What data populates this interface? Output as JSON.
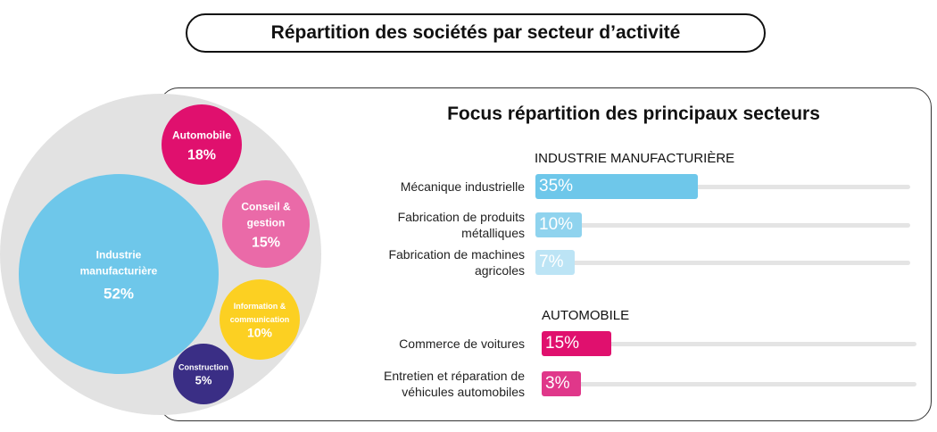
{
  "title": "Répartition des sociétés par secteur d’activité",
  "chart_data": [
    {
      "type": "bubble",
      "bubbles": [
        {
          "name": "Industrie manufacturière",
          "lines": [
            "Industrie",
            "manufacturière"
          ],
          "value": 52,
          "label": "52%",
          "color": "#6ec7ea"
        },
        {
          "name": "Automobile",
          "lines": [
            "Automobile"
          ],
          "value": 18,
          "label": "18%",
          "color": "#e0106e"
        },
        {
          "name": "Conseil & gestion",
          "lines": [
            "Conseil &",
            "gestion"
          ],
          "value": 15,
          "label": "15%",
          "color": "#ea6aa8"
        },
        {
          "name": "Information & communication",
          "lines": [
            "Information &",
            "communication"
          ],
          "value": 10,
          "label": "10%",
          "color": "#fcd022"
        },
        {
          "name": "Construction",
          "lines": [
            "Construction"
          ],
          "value": 5,
          "label": "5%",
          "color": "#3a2e85"
        }
      ],
      "background_color": "#e2e2e2"
    },
    {
      "type": "bar",
      "orientation": "horizontal",
      "title": "Focus répartition des principaux secteurs",
      "xlim": [
        0,
        100
      ],
      "groups": [
        {
          "title": "INDUSTRIE MANUFACTURIÈRE",
          "bars": [
            {
              "lines": [
                "Mécanique industrielle"
              ],
              "value": 35,
              "label": "35%",
              "color": "#6ec7ea"
            },
            {
              "lines": [
                "Fabrication de produits",
                "métalliques"
              ],
              "value": 10,
              "label": "10%",
              "color": "#8fd3ee"
            },
            {
              "lines": [
                "Fabrication de machines",
                "agricoles"
              ],
              "value": 7,
              "label": "7%",
              "color": "#bce4f5"
            }
          ]
        },
        {
          "title": "AUTOMOBILE",
          "bars": [
            {
              "lines": [
                "Commerce de voitures"
              ],
              "value": 15,
              "label": "15%",
              "color": "#e0106e"
            },
            {
              "lines": [
                "Entretien et réparation de",
                "véhicules automobiles"
              ],
              "value": 3,
              "label": "3%",
              "color": "#e0378a"
            }
          ]
        }
      ]
    }
  ]
}
